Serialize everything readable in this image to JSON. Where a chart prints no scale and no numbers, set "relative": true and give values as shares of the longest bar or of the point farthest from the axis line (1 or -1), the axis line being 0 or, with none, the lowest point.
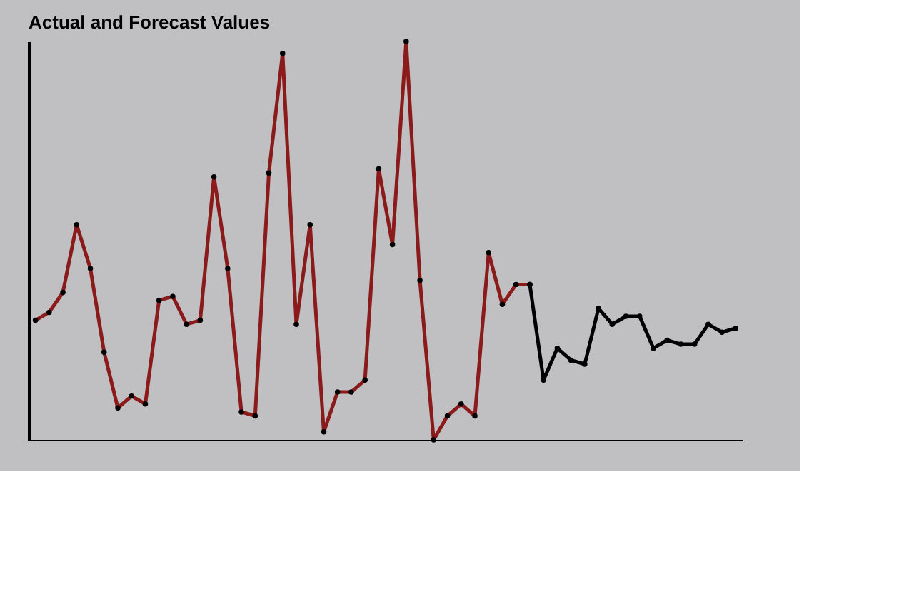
{
  "chart_data": {
    "type": "line",
    "title": "Actual and Forecast Values",
    "relative": true,
    "marker": "circle",
    "grid": false,
    "categories": [
      null,
      null,
      null,
      null,
      null,
      null,
      null,
      null,
      null,
      null,
      null,
      null,
      null,
      null,
      null,
      null,
      null,
      null,
      null,
      null,
      null,
      null,
      null,
      null,
      null,
      null,
      null,
      null,
      null,
      null,
      null,
      null,
      null,
      null,
      null,
      null,
      null,
      null,
      null,
      null,
      null,
      null,
      null,
      null,
      null,
      null,
      null,
      null,
      null,
      null,
      null,
      null
    ],
    "series": [
      {
        "color": "#8b1a1a",
        "values": [
          0.3,
          0.32,
          0.37,
          0.54,
          0.43,
          0.22,
          0.08,
          0.11,
          0.09,
          0.35,
          0.36,
          0.29,
          0.3,
          0.66,
          0.43,
          0.07,
          0.06,
          0.67,
          0.97,
          0.29,
          0.54,
          0.02,
          0.12,
          0.12,
          0.15,
          0.68,
          0.49,
          1,
          0.4,
          0,
          0.06,
          0.09,
          0.06,
          0.47,
          0.34,
          0.39,
          0.39,
          null,
          null,
          null,
          null,
          null,
          null,
          null,
          null,
          null,
          null,
          null,
          null,
          null,
          null,
          null
        ]
      },
      {
        "color": "#000000",
        "values": [
          null,
          null,
          null,
          null,
          null,
          null,
          null,
          null,
          null,
          null,
          null,
          null,
          null,
          null,
          null,
          null,
          null,
          null,
          null,
          null,
          null,
          null,
          null,
          null,
          null,
          null,
          null,
          null,
          null,
          null,
          null,
          null,
          null,
          null,
          null,
          null,
          0.39,
          0.15,
          0.23,
          0.2,
          0.19,
          0.33,
          0.29,
          0.31,
          0.31,
          0.23,
          0.25,
          0.24,
          0.24,
          0.29,
          0.27,
          0.28
        ]
      }
    ]
  }
}
